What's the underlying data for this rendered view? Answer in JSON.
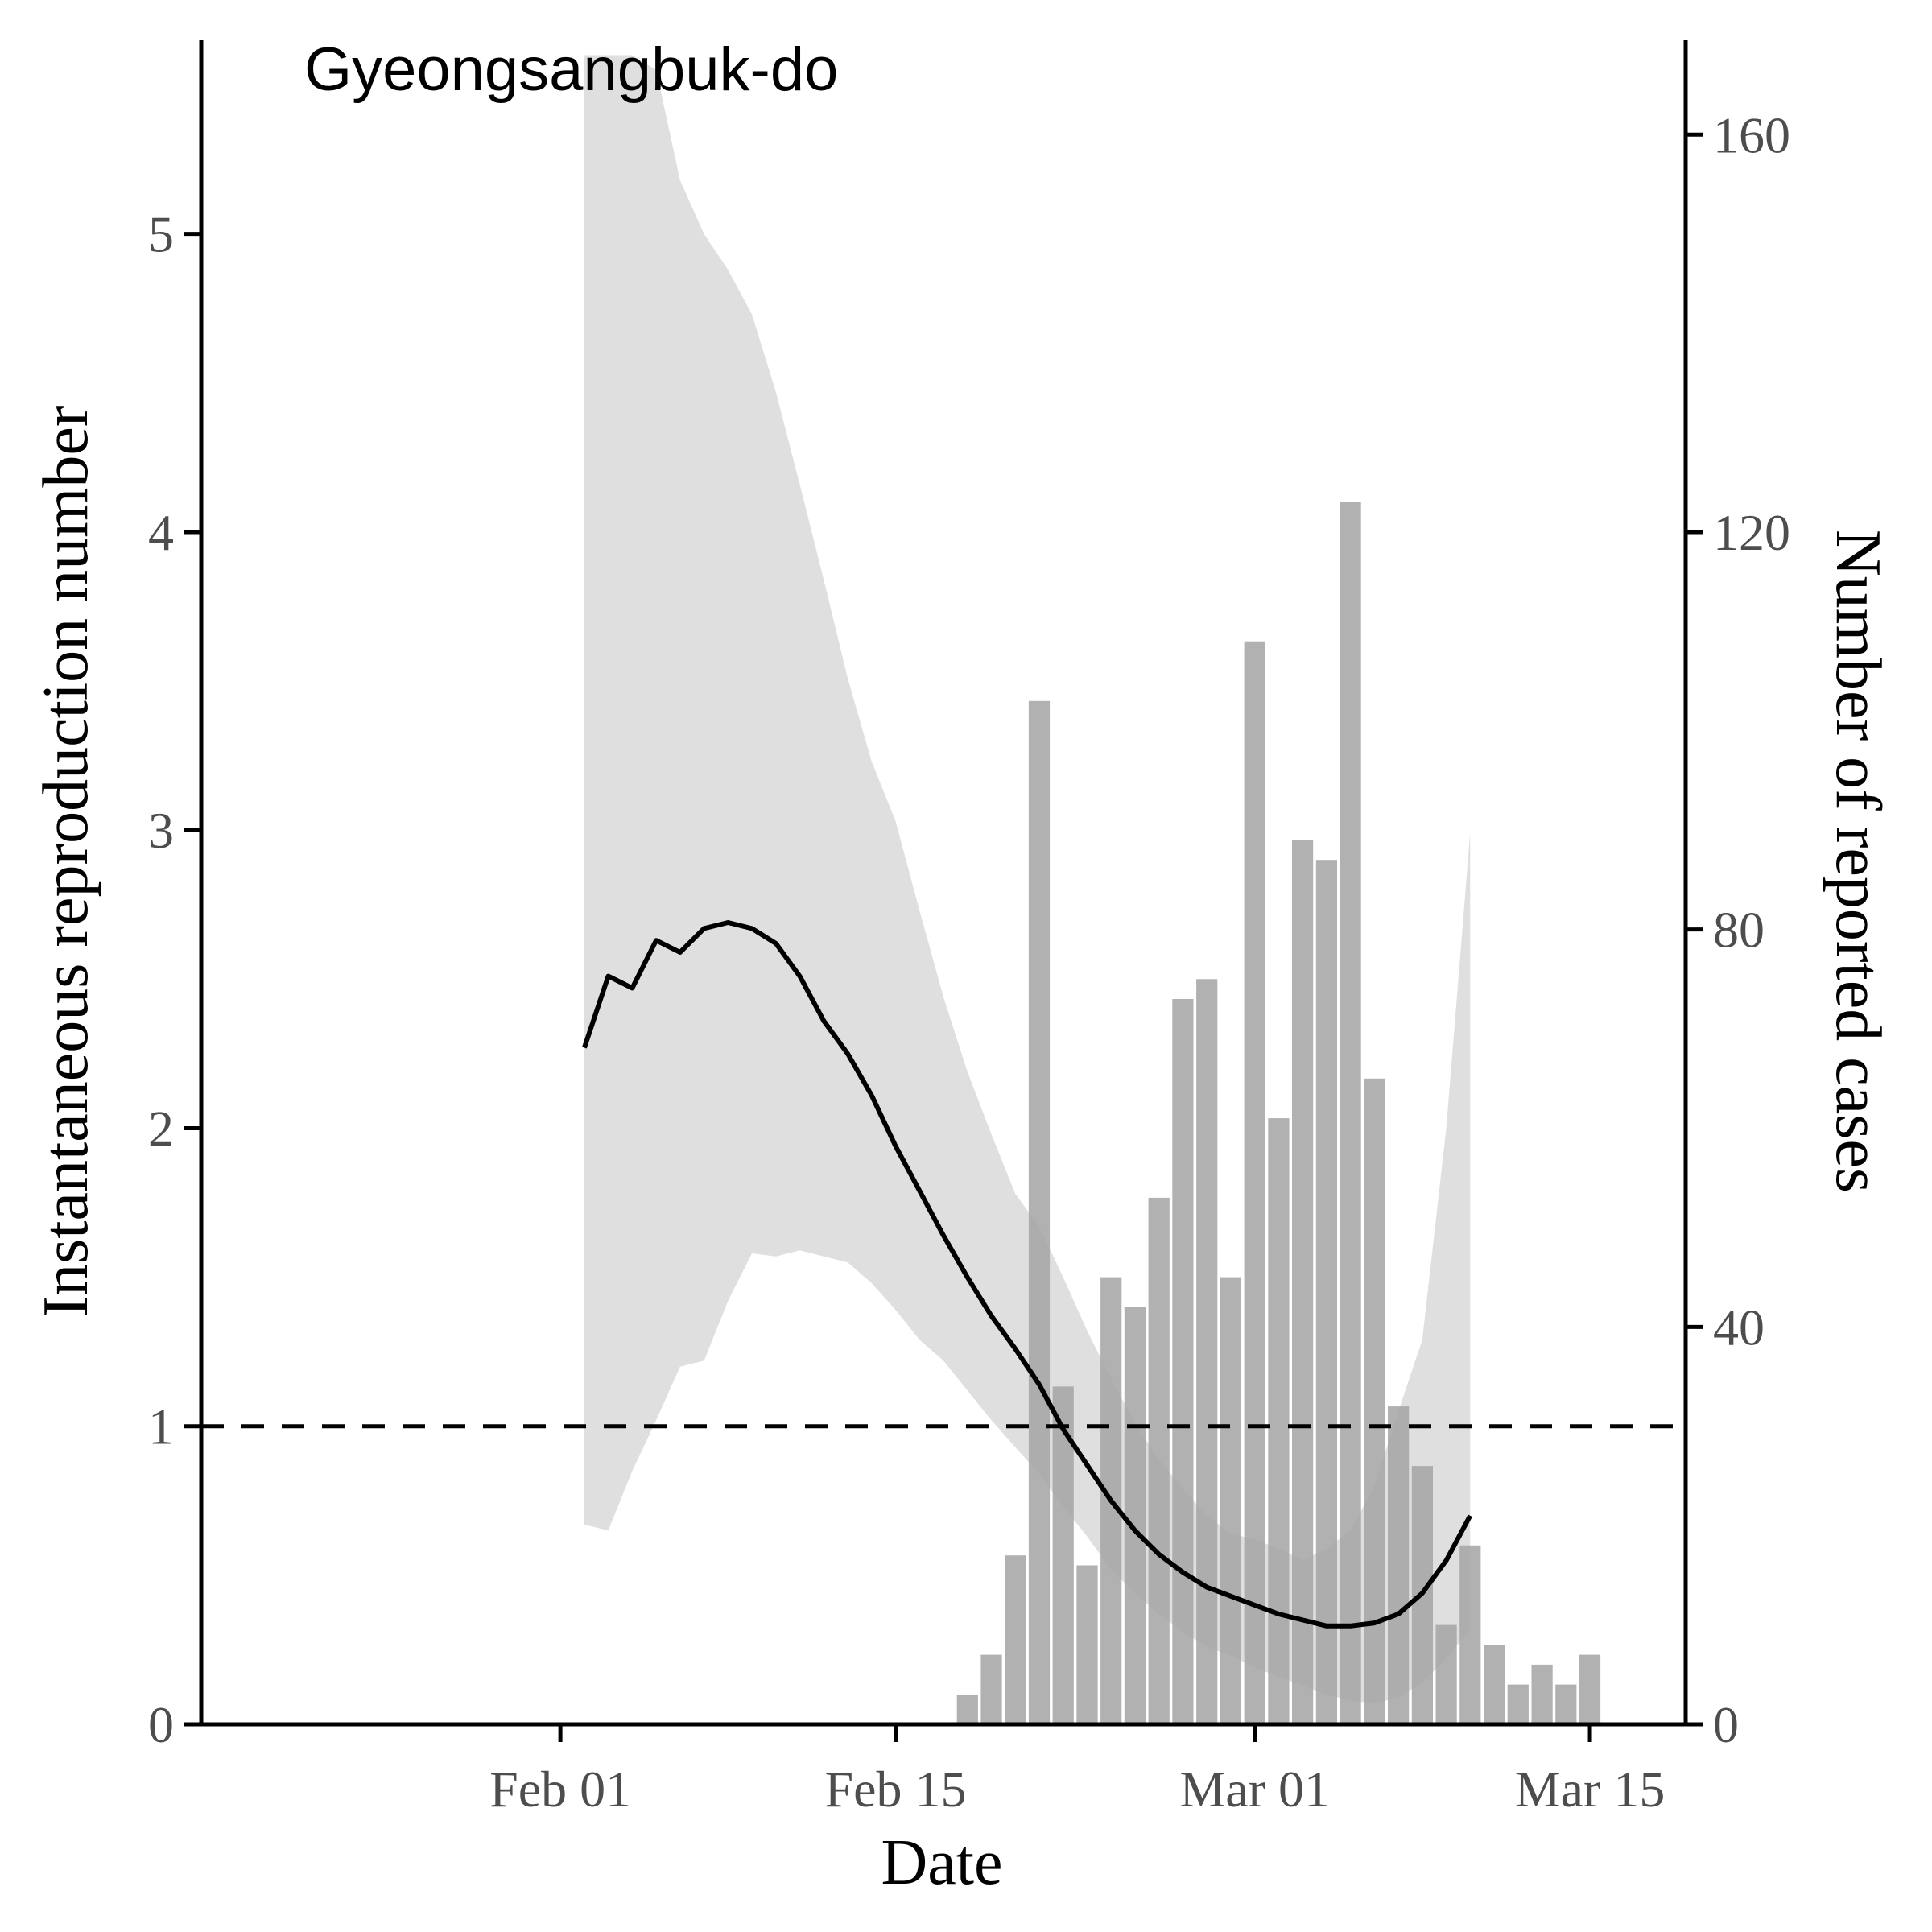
{
  "chart_data": {
    "type": "bar",
    "title": "Gyeongsangbuk-do",
    "xlabel": "Date",
    "ylabel_left": "Instantaneous reproduction number",
    "ylabel_right": "Number of reported cases",
    "x_ticks": [
      "Feb 01",
      "Feb 15",
      "Mar 01",
      "Mar 15"
    ],
    "x_tick_dates": [
      "2020-02-01",
      "2020-02-15",
      "2020-03-01",
      "2020-03-15"
    ],
    "xlim": [
      "2020-01-17",
      "2020-03-19"
    ],
    "y_left_ticks": [
      "0",
      "1",
      "2",
      "3",
      "4",
      "5"
    ],
    "y_left_lim": [
      0,
      5.65
    ],
    "y_right_ticks": [
      "0",
      "40",
      "80",
      "120",
      "160"
    ],
    "y_right_lim": [
      0,
      169.5
    ],
    "reference_line": {
      "y": 1,
      "style": "dashed"
    },
    "cases": {
      "name": "Number of reported cases",
      "color": "#a6a6a6",
      "dates": [
        "2020-02-18",
        "2020-02-19",
        "2020-02-20",
        "2020-02-21",
        "2020-02-22",
        "2020-02-23",
        "2020-02-24",
        "2020-02-25",
        "2020-02-26",
        "2020-02-27",
        "2020-02-28",
        "2020-02-29",
        "2020-03-01",
        "2020-03-02",
        "2020-03-03",
        "2020-03-04",
        "2020-03-05",
        "2020-03-06",
        "2020-03-07",
        "2020-03-08",
        "2020-03-09",
        "2020-03-10",
        "2020-03-11",
        "2020-03-12",
        "2020-03-13",
        "2020-03-14",
        "2020-03-15",
        "2020-03-16"
      ],
      "values": [
        3,
        7,
        17,
        103,
        34,
        16,
        45,
        42,
        53,
        73,
        75,
        45,
        109,
        61,
        89,
        87,
        123,
        65,
        32,
        26,
        10,
        18,
        8,
        4,
        6,
        4,
        7,
        0
      ]
    },
    "rt": {
      "name": "Instantaneous reproduction number",
      "color": "#000000",
      "band_color": "#d9d9d9",
      "dates": [
        "2020-02-02",
        "2020-02-03",
        "2020-02-04",
        "2020-02-05",
        "2020-02-06",
        "2020-02-07",
        "2020-02-08",
        "2020-02-09",
        "2020-02-10",
        "2020-02-11",
        "2020-02-12",
        "2020-02-13",
        "2020-02-14",
        "2020-02-15",
        "2020-02-16",
        "2020-02-17",
        "2020-02-18",
        "2020-02-19",
        "2020-02-20",
        "2020-02-21",
        "2020-02-22",
        "2020-02-23",
        "2020-02-24",
        "2020-02-25",
        "2020-02-26",
        "2020-02-27",
        "2020-02-28",
        "2020-02-29",
        "2020-03-01",
        "2020-03-02",
        "2020-03-03",
        "2020-03-04",
        "2020-03-05",
        "2020-03-06",
        "2020-03-07",
        "2020-03-08",
        "2020-03-09",
        "2020-03-10"
      ],
      "mean": [
        2.27,
        2.51,
        2.47,
        2.63,
        2.59,
        2.67,
        2.69,
        2.67,
        2.62,
        2.51,
        2.36,
        2.25,
        2.11,
        1.94,
        1.79,
        1.64,
        1.5,
        1.37,
        1.26,
        1.14,
        0.99,
        0.87,
        0.75,
        0.65,
        0.57,
        0.51,
        0.46,
        0.43,
        0.4,
        0.37,
        0.35,
        0.33,
        0.33,
        0.34,
        0.37,
        0.44,
        0.55,
        0.7
      ],
      "lower": [
        0.67,
        0.65,
        0.85,
        1.02,
        1.2,
        1.22,
        1.42,
        1.58,
        1.57,
        1.59,
        1.57,
        1.55,
        1.48,
        1.39,
        1.29,
        1.22,
        1.12,
        1.02,
        0.93,
        0.84,
        0.73,
        0.63,
        0.52,
        0.44,
        0.37,
        0.31,
        0.26,
        0.23,
        0.19,
        0.16,
        0.13,
        0.1,
        0.08,
        0.07,
        0.09,
        0.14,
        0.22,
        0.32
      ],
      "upper": [
        5.6,
        5.6,
        5.6,
        5.55,
        5.18,
        5.0,
        4.88,
        4.73,
        4.47,
        4.16,
        3.84,
        3.51,
        3.23,
        3.03,
        2.73,
        2.44,
        2.19,
        1.98,
        1.78,
        1.67,
        1.5,
        1.32,
        1.16,
        1.01,
        0.89,
        0.79,
        0.7,
        0.64,
        0.62,
        0.59,
        0.55,
        0.59,
        0.65,
        0.8,
        1.05,
        1.29,
        2.0,
        2.99
      ]
    }
  }
}
